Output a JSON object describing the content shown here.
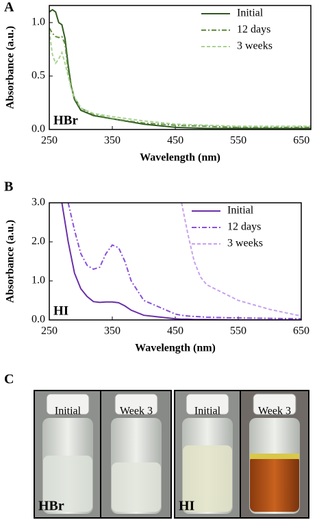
{
  "chart_data": [
    {
      "type": "line",
      "panel_label": "A",
      "annotation": "HBr",
      "xlabel": "Wavelength (nm)",
      "ylabel": "Absorbance (a.u.)",
      "x": [
        250,
        255,
        260,
        265,
        270,
        275,
        280,
        285,
        290,
        300,
        320,
        350,
        400,
        450,
        500,
        550,
        600,
        665
      ],
      "xlim": [
        250,
        665
      ],
      "xticks": [
        250,
        350,
        450,
        550,
        650
      ],
      "ylim": [
        0,
        1.16
      ],
      "yticks": [
        {
          "value": 0,
          "label": "0.0"
        },
        {
          "value": 0.5,
          "label": "0.5"
        },
        {
          "value": 1,
          "label": "1.0"
        }
      ],
      "legend": "upper right",
      "series": [
        {
          "name": "Initial",
          "color": "#2f5a1e",
          "style": "solid",
          "values": [
            1.1,
            1.12,
            1.1,
            1.0,
            0.98,
            0.85,
            0.6,
            0.4,
            0.28,
            0.18,
            0.13,
            0.1,
            0.05,
            0.02,
            0.01,
            0.01,
            0.01,
            0.01
          ]
        },
        {
          "name": "12 days",
          "color": "#5f8f40",
          "style": "dashdot",
          "values": [
            0.95,
            0.9,
            0.87,
            0.86,
            0.87,
            0.8,
            0.55,
            0.4,
            0.3,
            0.2,
            0.14,
            0.1,
            0.06,
            0.04,
            0.03,
            0.02,
            0.02,
            0.02
          ]
        },
        {
          "name": "3 weeks",
          "color": "#a9d28f",
          "style": "dashed",
          "values": [
            0.92,
            0.7,
            0.62,
            0.66,
            0.72,
            0.62,
            0.5,
            0.38,
            0.3,
            0.2,
            0.15,
            0.12,
            0.08,
            0.05,
            0.04,
            0.03,
            0.03,
            0.03
          ]
        }
      ]
    },
    {
      "type": "line",
      "panel_label": "B",
      "annotation": "HI",
      "xlabel": "Wavelength (nm)",
      "ylabel": "Absorbance (a.u.)",
      "x": [
        270,
        280,
        290,
        300,
        310,
        320,
        330,
        340,
        350,
        360,
        370,
        380,
        400,
        450,
        460,
        470,
        480,
        490,
        500,
        550,
        600,
        650
      ],
      "xlim": [
        250,
        650
      ],
      "xticks": [
        250,
        350,
        450,
        550,
        650
      ],
      "ylim": [
        0,
        3
      ],
      "yticks": [
        {
          "value": 0,
          "label": "0.0"
        },
        {
          "value": 1,
          "label": "1.0"
        },
        {
          "value": 2,
          "label": "2.0"
        },
        {
          "value": 3,
          "label": "3.0"
        }
      ],
      "legend": "upper right",
      "series": [
        {
          "name": "Initial",
          "color": "#6a2fa8",
          "style": "solid",
          "values": [
            3.0,
            2.0,
            1.2,
            0.8,
            0.6,
            0.47,
            0.45,
            0.46,
            0.46,
            0.44,
            0.36,
            0.25,
            0.12,
            0.03,
            0.02,
            0.02,
            0.01,
            0.01,
            0.01,
            0.0,
            0.0,
            0.0
          ]
        },
        {
          "name": "12 days",
          "color": "#8a4fd8",
          "style": "dashdot",
          "values": [
            null,
            3.0,
            2.3,
            1.7,
            1.4,
            1.3,
            1.35,
            1.7,
            1.92,
            1.85,
            1.5,
            1.0,
            0.5,
            0.15,
            0.12,
            0.1,
            0.09,
            0.08,
            0.07,
            0.05,
            0.04,
            0.03
          ]
        },
        {
          "name": "3 weeks",
          "color": "#c7a0ef",
          "style": "dashed",
          "values": [
            null,
            null,
            null,
            null,
            null,
            null,
            null,
            null,
            null,
            null,
            null,
            null,
            null,
            null,
            3.0,
            2.2,
            1.5,
            1.1,
            0.9,
            0.5,
            0.27,
            0.1
          ]
        }
      ]
    }
  ],
  "photo_panel": {
    "label": "C",
    "groups": [
      {
        "name": "HBr",
        "vials": [
          "Initial",
          "Week 3"
        ]
      },
      {
        "name": "HI",
        "vials": [
          "Initial",
          "Week 3"
        ]
      }
    ]
  }
}
